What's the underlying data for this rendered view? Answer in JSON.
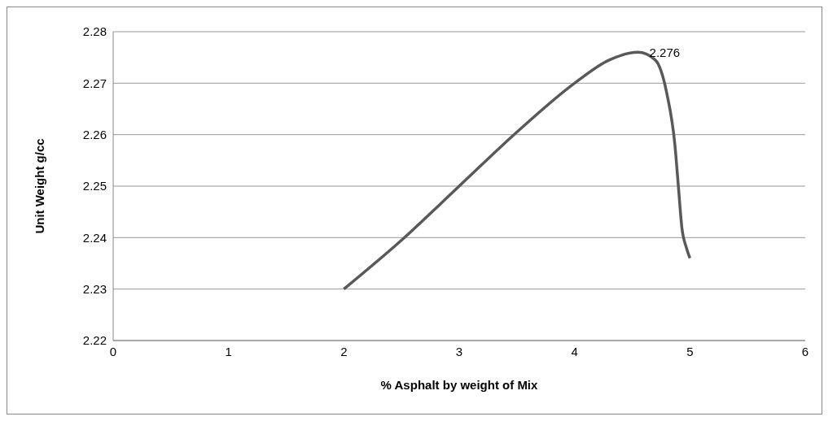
{
  "chart_data": {
    "type": "line",
    "xlabel": "% Asphalt by weight of Mix",
    "ylabel": "Unit Weight g/cc",
    "x": [
      2,
      2.5,
      3,
      3.5,
      4,
      4.3,
      4.55,
      4.7,
      4.8,
      4.87,
      4.9,
      4.93,
      4.97,
      5
    ],
    "series": [
      {
        "color": "#595959",
        "values": [
          2.23,
          2.2395,
          2.25,
          2.2605,
          2.27,
          2.2745,
          2.276,
          2.2745,
          2.268,
          2.258,
          2.25,
          2.242,
          2.238,
          2.236
        ]
      }
    ],
    "xlim": [
      0,
      6
    ],
    "xticks": [
      0,
      1,
      2,
      3,
      4,
      5,
      6
    ],
    "ylim": [
      2.22,
      2.28
    ],
    "yticks": [
      2.22,
      2.23,
      2.24,
      2.25,
      2.26,
      2.27,
      2.28
    ],
    "grid": "y",
    "marker": "none",
    "line_style": "solid",
    "annotations": [
      {
        "text": "2.276",
        "x": 4.55,
        "y": 2.276
      }
    ]
  }
}
